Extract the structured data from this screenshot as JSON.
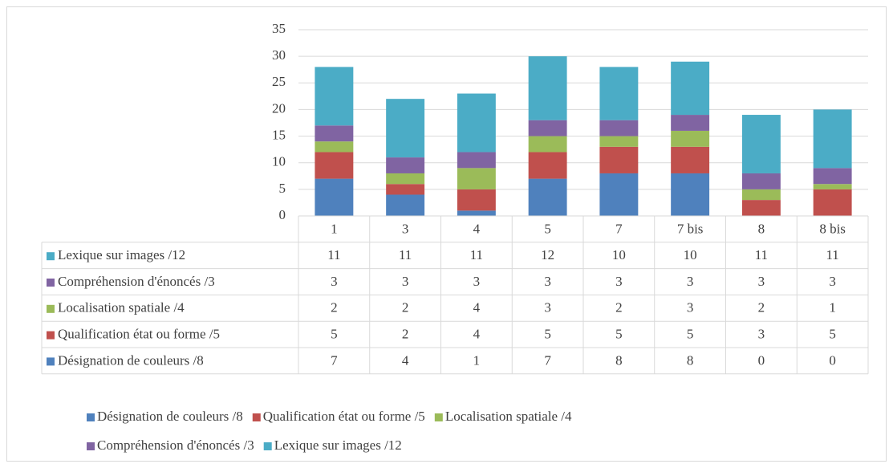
{
  "chart_data": {
    "type": "bar",
    "stacked": true,
    "categories": [
      "1",
      "3",
      "4",
      "5",
      "7",
      "7 bis",
      "8",
      "8 bis"
    ],
    "series": [
      {
        "name": "Désignation de couleurs /8",
        "color": "#4f81bd",
        "values": [
          7,
          4,
          1,
          7,
          8,
          8,
          0,
          0
        ]
      },
      {
        "name": "Qualification état ou forme /5",
        "color": "#c0504d",
        "values": [
          5,
          2,
          4,
          5,
          5,
          5,
          3,
          5
        ]
      },
      {
        "name": "Localisation spatiale /4",
        "color": "#9bbb59",
        "values": [
          2,
          2,
          4,
          3,
          2,
          3,
          2,
          1
        ]
      },
      {
        "name": "Compréhension d'énoncés /3",
        "color": "#8064a2",
        "values": [
          3,
          3,
          3,
          3,
          3,
          3,
          3,
          3
        ]
      },
      {
        "name": "Lexique sur images /12",
        "color": "#4bacc6",
        "values": [
          11,
          11,
          11,
          12,
          10,
          10,
          11,
          11
        ]
      }
    ],
    "ylim": [
      0,
      35
    ],
    "yticks": [
      0,
      5,
      10,
      15,
      20,
      25,
      30,
      35
    ],
    "grid": true,
    "legend": "bottom"
  }
}
